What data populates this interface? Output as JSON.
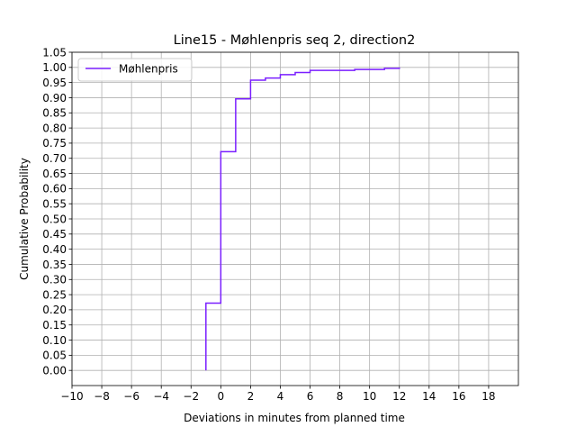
{
  "chart_data": {
    "type": "line",
    "drawstyle": "steps-post",
    "title": "Line15 - Møhlenpris seq 2, direction2",
    "xlabel": "Deviations in minutes from planned time",
    "ylabel": "Cumulative Probability",
    "xlim": [
      -10,
      20
    ],
    "ylim": [
      -0.05,
      1.05
    ],
    "xticks": [
      -10,
      -8,
      -6,
      -4,
      -2,
      0,
      2,
      4,
      6,
      8,
      10,
      12,
      14,
      16,
      18
    ],
    "xtick_labels": [
      "−10",
      "−8",
      "−6",
      "−4",
      "−2",
      "0",
      "2",
      "4",
      "6",
      "8",
      "10",
      "12",
      "14",
      "16",
      "18"
    ],
    "yticks": [
      0.0,
      0.05,
      0.1,
      0.15,
      0.2,
      0.25,
      0.3,
      0.35,
      0.4,
      0.45,
      0.5,
      0.55,
      0.6,
      0.65,
      0.7,
      0.75,
      0.8,
      0.85,
      0.9,
      0.95,
      1.0,
      1.05
    ],
    "ytick_labels": [
      "0.00",
      "0.05",
      "0.10",
      "0.15",
      "0.20",
      "0.25",
      "0.30",
      "0.35",
      "0.40",
      "0.45",
      "0.50",
      "0.55",
      "0.60",
      "0.65",
      "0.70",
      "0.75",
      "0.80",
      "0.85",
      "0.90",
      "0.95",
      "1.00",
      "1.05"
    ],
    "grid": true,
    "legend_position": "top-left",
    "series": [
      {
        "name": "Møhlenpris",
        "color": "#7a1fff",
        "x": [
          -1,
          -1,
          0,
          1,
          2,
          3,
          4,
          5,
          6,
          7,
          8,
          9,
          10,
          11,
          12
        ],
        "y": [
          0.0,
          0.222,
          0.722,
          0.896,
          0.958,
          0.965,
          0.976,
          0.983,
          0.99,
          0.99,
          0.99,
          0.993,
          0.993,
          0.997,
          1.0
        ]
      }
    ]
  }
}
